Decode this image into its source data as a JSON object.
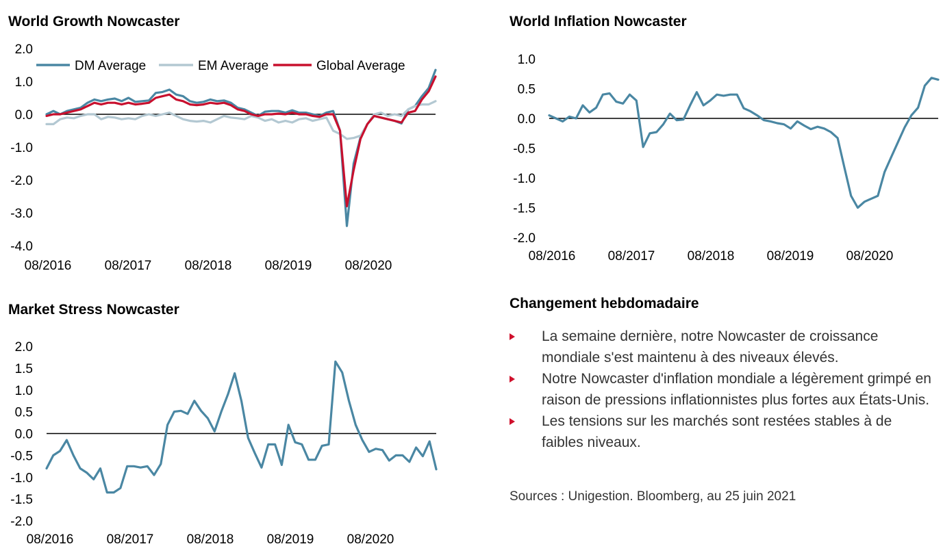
{
  "chart_data": [
    {
      "type": "line",
      "title": "World Growth Nowcaster",
      "ylim": [
        -4.0,
        2.0
      ],
      "yticks": [
        "2.0",
        "1.0",
        "0.0",
        "-1.0",
        "-2.0",
        "-3.0",
        "-4.0"
      ],
      "xticks": [
        "08/2016",
        "08/2017",
        "08/2018",
        "08/2019",
        "08/2020"
      ],
      "legend_position": "top",
      "series": [
        {
          "name": "DM Average",
          "color": "#4a87a3",
          "values": [
            0.0,
            0.1,
            0.0,
            0.1,
            0.15,
            0.2,
            0.35,
            0.45,
            0.4,
            0.45,
            0.48,
            0.4,
            0.5,
            0.38,
            0.4,
            0.42,
            0.65,
            0.68,
            0.75,
            0.6,
            0.55,
            0.4,
            0.35,
            0.38,
            0.45,
            0.4,
            0.42,
            0.35,
            0.2,
            0.15,
            0.05,
            -0.05,
            0.08,
            0.1,
            0.1,
            0.05,
            0.12,
            0.05,
            0.05,
            0.0,
            -0.05,
            0.05,
            0.1,
            -0.5,
            -3.4,
            -1.5,
            -0.7,
            -0.3,
            -0.05,
            -0.1,
            -0.15,
            -0.2,
            -0.28,
            0.15,
            0.25,
            0.55,
            0.8,
            1.35
          ]
        },
        {
          "name": "EM Average",
          "color": "#b3c8d2",
          "values": [
            -0.3,
            -0.3,
            -0.15,
            -0.1,
            -0.12,
            -0.05,
            0.0,
            0.0,
            -0.15,
            -0.08,
            -0.1,
            -0.15,
            -0.12,
            -0.15,
            -0.05,
            0.0,
            -0.05,
            0.0,
            0.05,
            -0.05,
            -0.15,
            -0.2,
            -0.22,
            -0.2,
            -0.25,
            -0.15,
            -0.05,
            -0.1,
            -0.12,
            -0.15,
            -0.05,
            -0.1,
            -0.2,
            -0.15,
            -0.25,
            -0.2,
            -0.25,
            -0.15,
            -0.12,
            -0.2,
            -0.15,
            -0.1,
            -0.5,
            -0.6,
            -0.75,
            -0.72,
            -0.65,
            -0.3,
            0.0,
            0.05,
            -0.05,
            0.0,
            -0.05,
            0.15,
            0.25,
            0.3,
            0.3,
            0.4
          ]
        },
        {
          "name": "Global Average",
          "color": "#c8102e",
          "values": [
            -0.05,
            0.0,
            0.0,
            0.05,
            0.1,
            0.15,
            0.25,
            0.35,
            0.3,
            0.35,
            0.35,
            0.3,
            0.35,
            0.3,
            0.32,
            0.35,
            0.5,
            0.55,
            0.6,
            0.45,
            0.4,
            0.3,
            0.28,
            0.3,
            0.35,
            0.32,
            0.35,
            0.28,
            0.15,
            0.1,
            0.0,
            -0.05,
            0.0,
            0.0,
            0.02,
            0.0,
            0.05,
            0.0,
            0.0,
            -0.05,
            -0.08,
            0.0,
            0.0,
            -0.5,
            -2.8,
            -1.7,
            -0.75,
            -0.3,
            -0.05,
            -0.1,
            -0.15,
            -0.2,
            -0.25,
            0.05,
            0.1,
            0.45,
            0.7,
            1.15
          ]
        }
      ]
    },
    {
      "type": "line",
      "title": "World Inflation Nowcaster",
      "ylim": [
        -2.0,
        1.0
      ],
      "yticks": [
        "1.0",
        "0.5",
        "0.0",
        "-0.5",
        "-1.0",
        "-1.5",
        "-2.0"
      ],
      "xticks": [
        "08/2016",
        "08/2017",
        "08/2018",
        "08/2019",
        "08/2020"
      ],
      "series": [
        {
          "color": "#4a87a3",
          "values": [
            0.05,
            0.0,
            -0.05,
            0.03,
            0.0,
            0.22,
            0.1,
            0.18,
            0.4,
            0.42,
            0.28,
            0.25,
            0.4,
            0.3,
            -0.48,
            -0.25,
            -0.23,
            -0.1,
            0.08,
            -0.03,
            -0.02,
            0.22,
            0.44,
            0.22,
            0.3,
            0.4,
            0.38,
            0.4,
            0.4,
            0.17,
            0.12,
            0.05,
            -0.03,
            -0.05,
            -0.08,
            -0.1,
            -0.17,
            -0.05,
            -0.12,
            -0.18,
            -0.14,
            -0.17,
            -0.23,
            -0.33,
            -0.82,
            -1.3,
            -1.5,
            -1.4,
            -1.35,
            -1.3,
            -0.9,
            -0.65,
            -0.4,
            -0.15,
            0.05,
            0.18,
            0.55,
            0.68,
            0.65
          ]
        }
      ]
    },
    {
      "type": "line",
      "title": "Market Stress Nowcaster",
      "ylim": [
        -2.0,
        2.0
      ],
      "yticks": [
        "2.0",
        "1.5",
        "1.0",
        "0.5",
        "0.0",
        "-0.5",
        "-1.0",
        "-1.5",
        "-2.0"
      ],
      "xticks": [
        "08/2016",
        "08/2017",
        "08/2018",
        "08/2019",
        "08/2020"
      ],
      "series": [
        {
          "color": "#4a87a3",
          "values": [
            -0.8,
            -0.5,
            -0.4,
            -0.15,
            -0.5,
            -0.8,
            -0.9,
            -1.05,
            -0.8,
            -1.35,
            -1.35,
            -1.25,
            -0.75,
            -0.75,
            -0.78,
            -0.75,
            -0.95,
            -0.7,
            0.2,
            0.5,
            0.52,
            0.45,
            0.75,
            0.52,
            0.35,
            0.05,
            0.5,
            0.9,
            1.38,
            0.75,
            -0.1,
            -0.45,
            -0.78,
            -0.25,
            -0.25,
            -0.72,
            0.2,
            -0.2,
            -0.25,
            -0.6,
            -0.6,
            -0.28,
            -0.25,
            1.65,
            1.4,
            0.75,
            0.2,
            -0.15,
            -0.42,
            -0.35,
            -0.38,
            -0.62,
            -0.5,
            -0.5,
            -0.65,
            -0.32,
            -0.52,
            -0.18,
            -0.82
          ]
        }
      ]
    }
  ],
  "notes": {
    "heading": "Changement hebdomadaire",
    "bullets": [
      "La semaine dernière, notre Nowcaster de croissance mondiale s'est maintenu à des niveaux élevés.",
      "Notre Nowcaster d'inflation mondiale a légèrement grimpé en raison de pressions inflationnistes plus fortes aux États-Unis.",
      "Les tensions sur les marchés sont restées stables à de faibles niveaux."
    ],
    "bullet_color": "#d0102c"
  },
  "sources": "Sources : Unigestion. Bloomberg, au 25 juin 2021"
}
